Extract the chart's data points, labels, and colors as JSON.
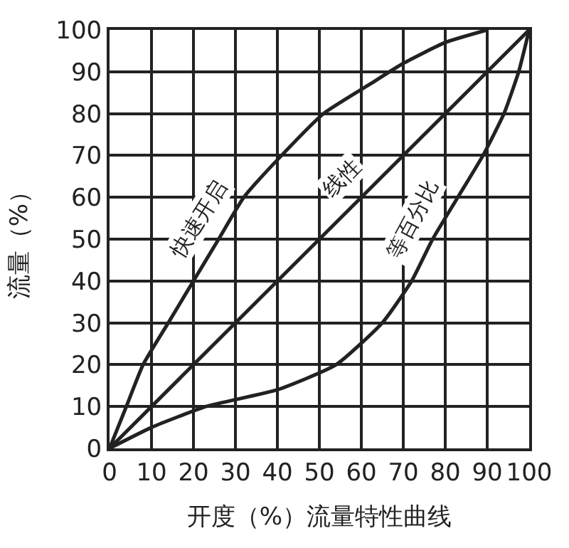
{
  "chart_data": {
    "type": "line",
    "xlabel": "开度（%）流量特性曲线",
    "ylabel": "流量（%）",
    "xlim": [
      0,
      100
    ],
    "ylim": [
      0,
      100
    ],
    "xticks": [
      0,
      10,
      20,
      30,
      40,
      50,
      60,
      70,
      80,
      90,
      100
    ],
    "yticks": [
      0,
      10,
      20,
      30,
      40,
      50,
      60,
      70,
      80,
      90,
      100
    ],
    "grid": true,
    "legend": false,
    "marker": "none",
    "line_style": "solid",
    "series": [
      {
        "name": "快速开启",
        "color": "#222222",
        "x": [
          0,
          4,
          8,
          14,
          20,
          26,
          32,
          41,
          51,
          62,
          70,
          80,
          90
        ],
        "values": [
          0,
          10,
          20,
          30,
          40,
          50,
          60,
          70,
          80,
          87,
          92,
          97,
          100
        ]
      },
      {
        "name": "线性",
        "color": "#222222",
        "x": [
          0,
          100
        ],
        "values": [
          0,
          100
        ]
      },
      {
        "name": "等百分比",
        "color": "#222222",
        "x": [
          0,
          10,
          23,
          40,
          54,
          65,
          72,
          77,
          83,
          89,
          94,
          97.5,
          100
        ],
        "values": [
          0,
          5,
          10,
          14,
          20,
          30,
          40,
          50,
          60,
          70,
          80,
          90,
          100
        ]
      }
    ]
  }
}
